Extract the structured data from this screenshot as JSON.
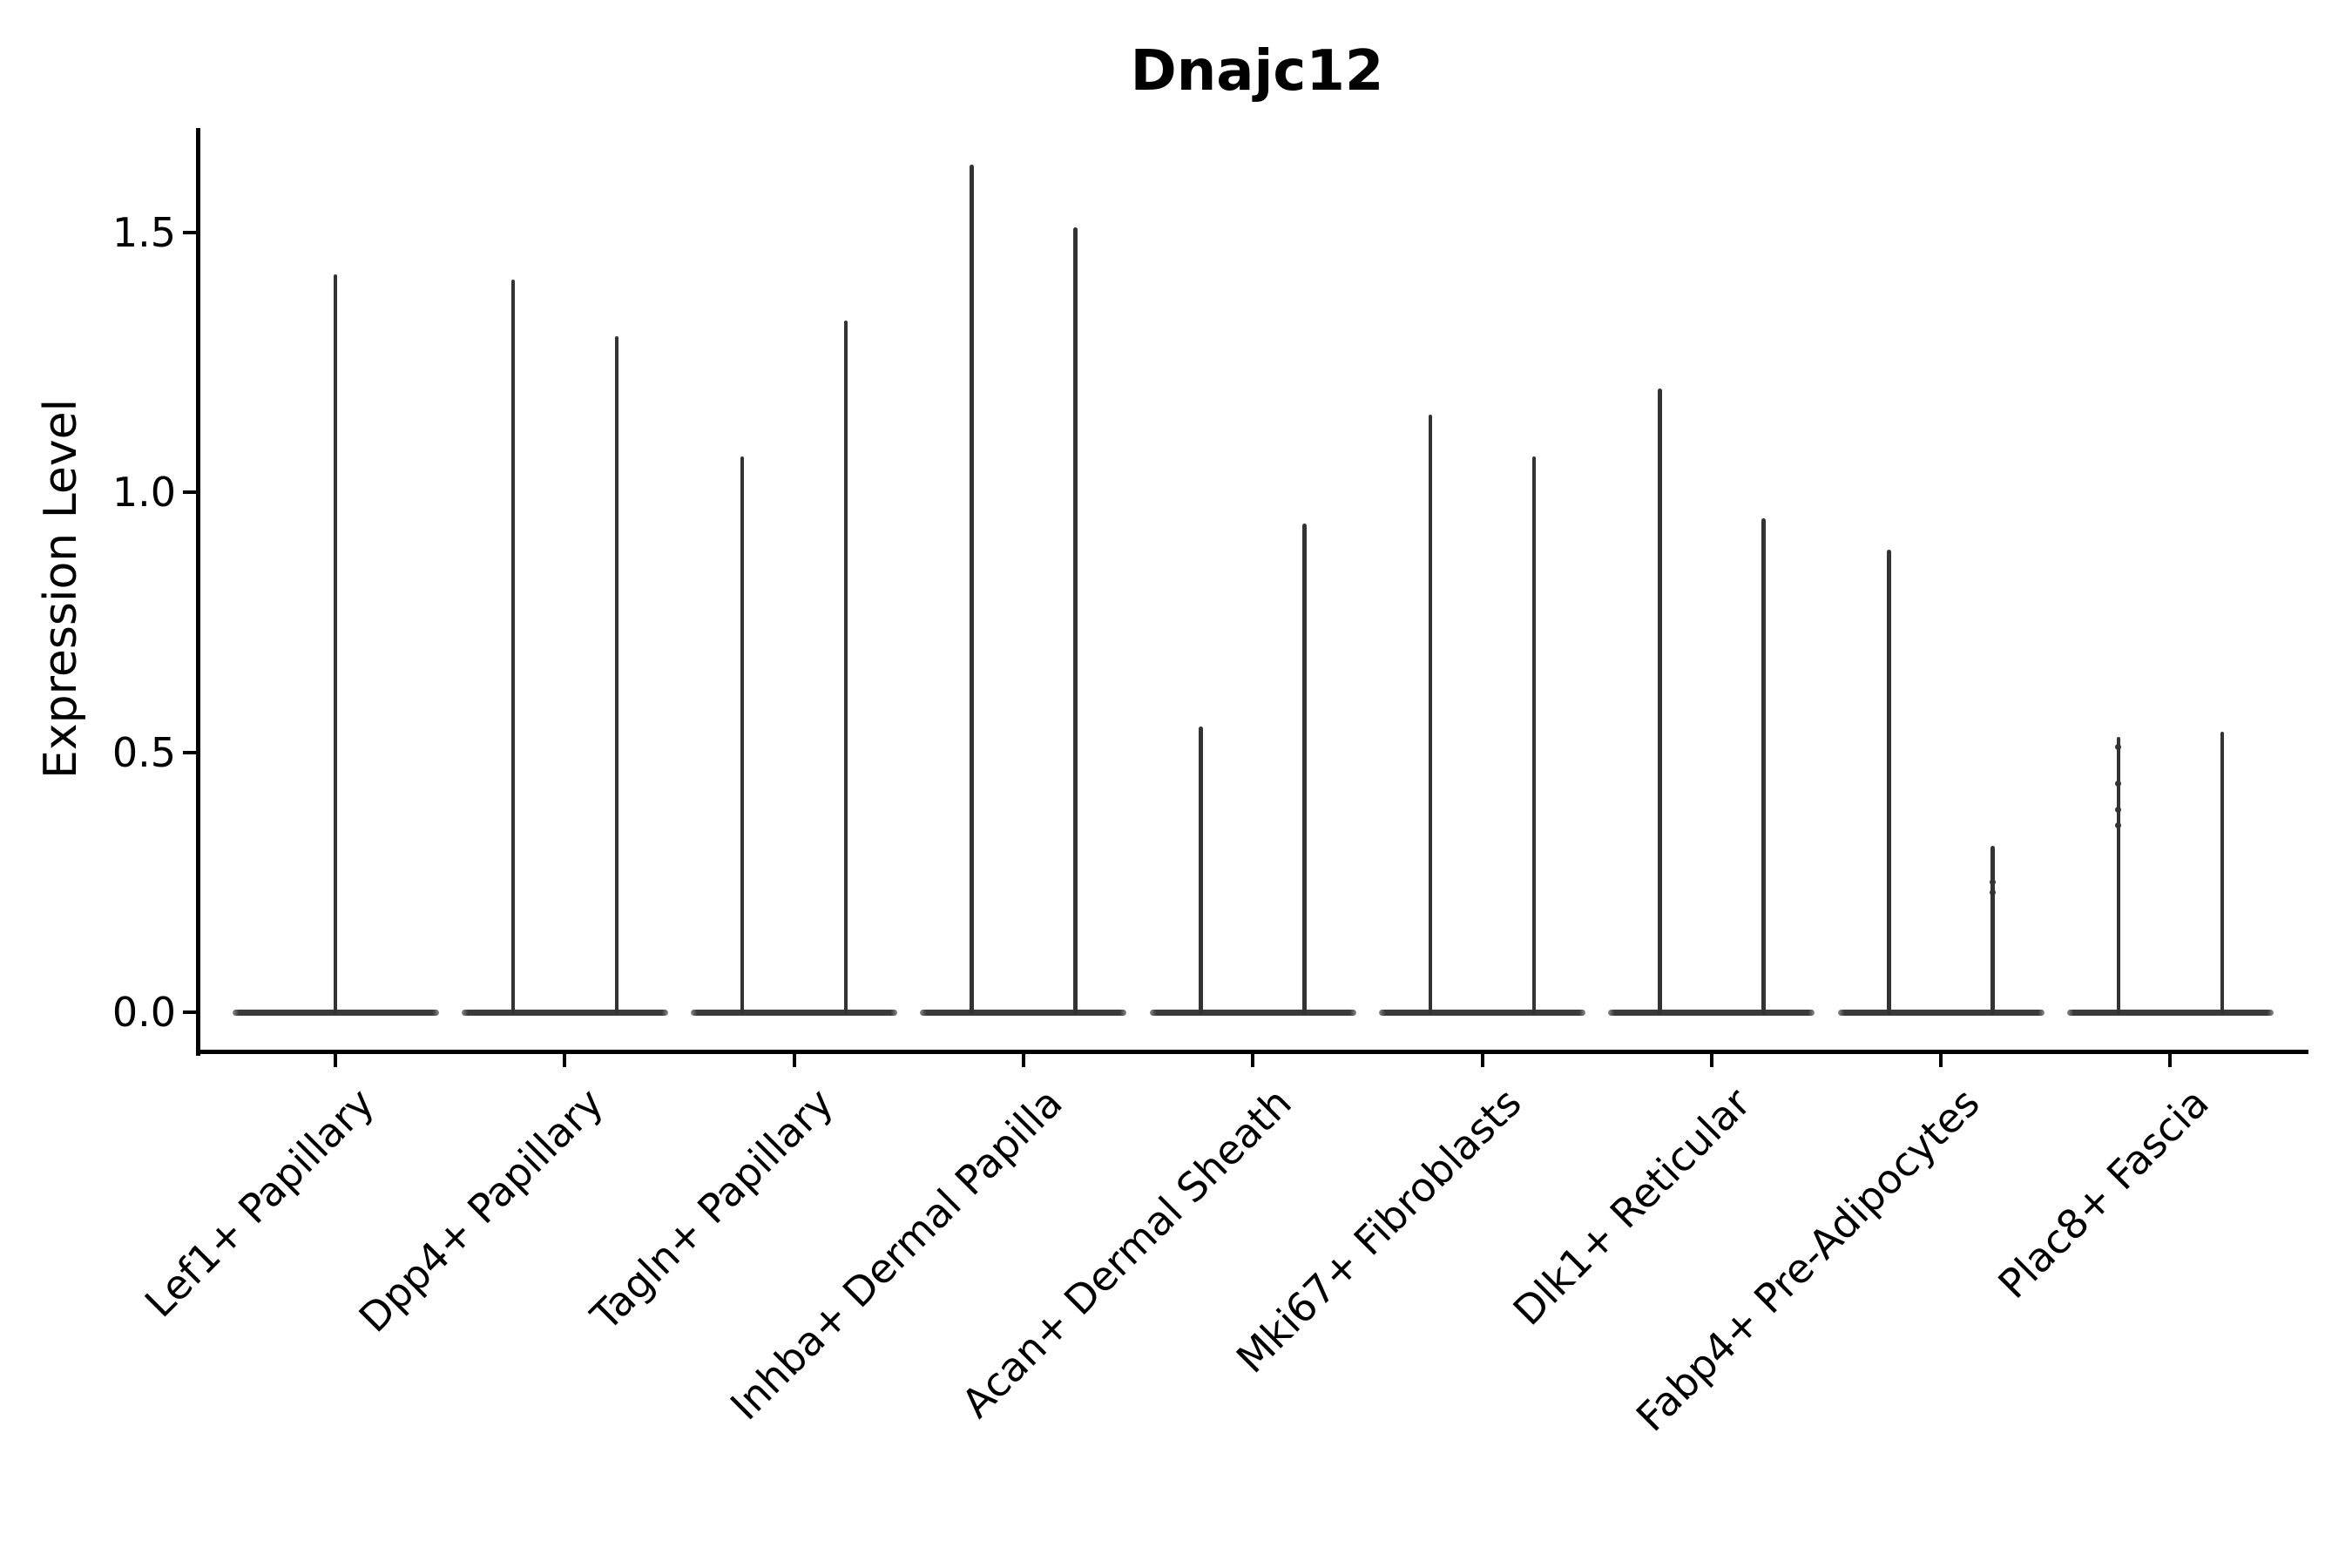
{
  "chart_data": {
    "type": "violin",
    "title": "Dnajc12",
    "xlabel": "",
    "ylabel": "Expression Level",
    "ylim": [
      0,
      1.71
    ],
    "yticks": [
      0.0,
      0.5,
      1.0,
      1.5
    ],
    "ytick_labels": [
      "0.0",
      "0.5",
      "1.0",
      "1.5"
    ],
    "grid": false,
    "legend": "none",
    "categories": [
      "Lef1+ Papillary",
      "Dpp4+ Papillary",
      "Tagln+ Papillary",
      "Inhba+ Dermal Papilla",
      "Acan+ Dermal Sheath",
      "Mki67+ Fibroblasts",
      "Dlk1+ Reticular",
      "Fabp4+ Pre-Adipocytes",
      "Plac8+ Fascia"
    ],
    "violins": [
      {
        "category": "Lef1+ Papillary",
        "layout": "single",
        "max_values": [
          1.42
        ],
        "point_values": [
          []
        ]
      },
      {
        "category": "Dpp4+ Papillary",
        "layout": "pair",
        "max_values": [
          1.41,
          1.3
        ],
        "point_values": [
          [],
          []
        ]
      },
      {
        "category": "Tagln+ Papillary",
        "layout": "pair",
        "max_values": [
          1.07,
          1.33
        ],
        "point_values": [
          [],
          []
        ]
      },
      {
        "category": "Inhba+ Dermal Papilla",
        "layout": "pair",
        "max_values": [
          1.63,
          1.51
        ],
        "point_values": [
          [],
          []
        ]
      },
      {
        "category": "Acan+ Dermal Sheath",
        "layout": "pair",
        "max_values": [
          0.55,
          0.94
        ],
        "point_values": [
          [],
          []
        ]
      },
      {
        "category": "Mki67+ Fibroblasts",
        "layout": "pair",
        "max_values": [
          1.15,
          1.07
        ],
        "point_values": [
          [],
          []
        ]
      },
      {
        "category": "Dlk1+ Reticular",
        "layout": "pair",
        "max_values": [
          1.2,
          0.95
        ],
        "point_values": [
          [],
          []
        ]
      },
      {
        "category": "Fabp4+ Pre-Adipocytes",
        "layout": "pair",
        "max_values": [
          0.89,
          0.32
        ],
        "point_values": [
          [],
          [
            0.25,
            0.23
          ]
        ]
      },
      {
        "category": "Plac8+ Fascia",
        "layout": "pair",
        "max_values": [
          0.53,
          0.54
        ],
        "point_values": [
          [
            0.51,
            0.44,
            0.39,
            0.36
          ],
          []
        ]
      }
    ],
    "colors": {
      "violin": "#333333",
      "violin_base": "#3a3a3a",
      "axis": "#000000",
      "text": "#000000",
      "background": "#ffffff"
    },
    "style_note": "Each violin is a flat horizontal base at expression 0 with a thin vertical spike rising to its max value; x tick labels rotated 45 degrees."
  }
}
